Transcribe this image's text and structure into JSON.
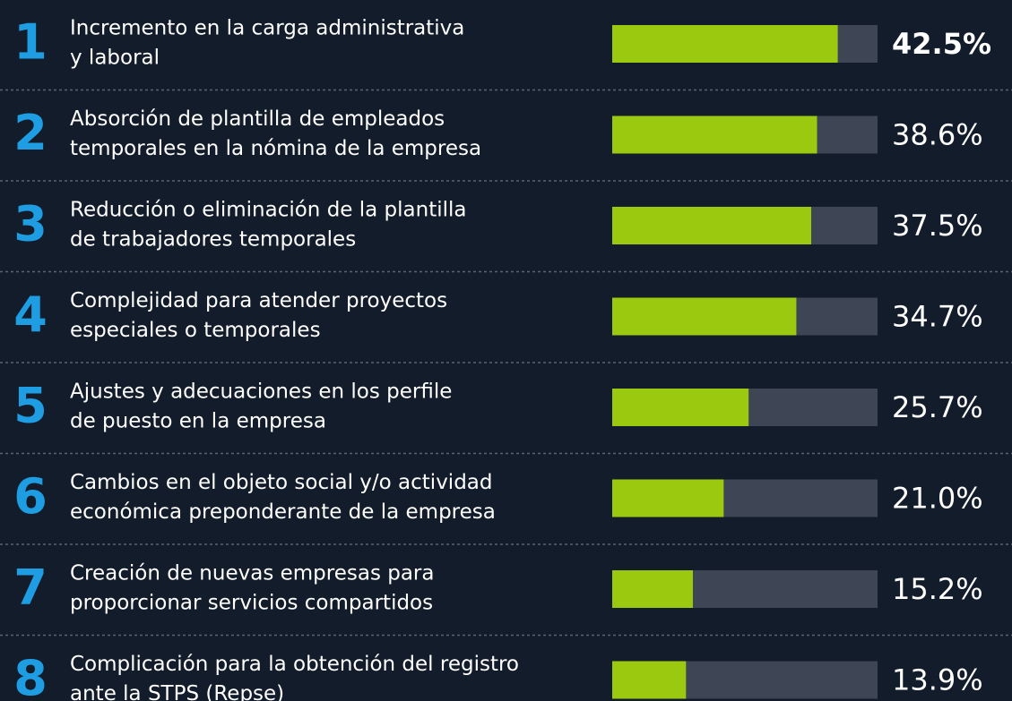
{
  "chart_data": {
    "type": "bar",
    "orientation": "horizontal",
    "ranks": [
      1,
      2,
      3,
      4,
      5,
      6,
      7,
      8
    ],
    "categories": [
      [
        "Incremento en la carga administrativa",
        "y laboral"
      ],
      [
        "Absorción de plantilla de empleados",
        "temporales en la nómina de la empresa"
      ],
      [
        "Reducción o eliminación de la plantilla",
        "de trabajadores temporales"
      ],
      [
        "Complejidad para atender proyectos",
        "especiales o temporales"
      ],
      [
        "Ajustes y adecuaciones en los perfile",
        "de puesto en la empresa"
      ],
      [
        "Cambios en el objeto social y/o actividad",
        "económica preponderante de la empresa"
      ],
      [
        "Creación de nuevas empresas para",
        "proporcionar servicios compartidos"
      ],
      [
        "Complicación para la obtención del registro",
        "ante la STPS (Repse)"
      ]
    ],
    "values": [
      42.5,
      38.6,
      37.5,
      34.7,
      25.7,
      21.0,
      15.2,
      13.9
    ],
    "value_labels": [
      "42.5%",
      "38.6%",
      "37.5%",
      "34.7%",
      "25.7%",
      "21.0%",
      "15.2%",
      "13.9%"
    ],
    "xlim": [
      0,
      50
    ],
    "color": "#9bc90f",
    "track_color": "#3e4554"
  }
}
